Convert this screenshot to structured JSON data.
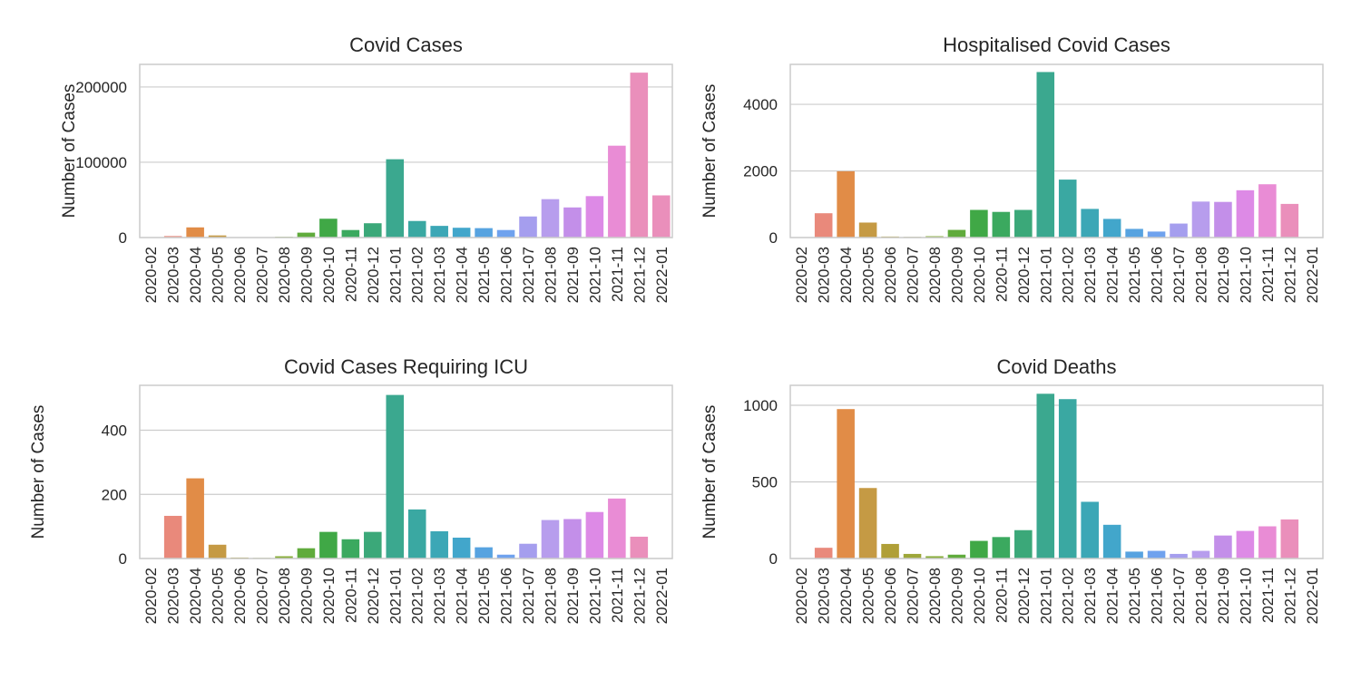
{
  "chart_data": [
    {
      "type": "bar",
      "title": "Covid Cases",
      "xlabel": "",
      "ylabel": "Number of Cases",
      "ylim": [
        0,
        230000
      ],
      "yticks": [
        0,
        100000,
        200000
      ],
      "grid": true,
      "categories": [
        "2020-02",
        "2020-03",
        "2020-04",
        "2020-05",
        "2020-06",
        "2020-07",
        "2020-08",
        "2020-09",
        "2020-10",
        "2020-11",
        "2020-12",
        "2021-01",
        "2021-02",
        "2021-03",
        "2021-04",
        "2021-05",
        "2021-06",
        "2021-07",
        "2021-08",
        "2021-09",
        "2021-10",
        "2021-11",
        "2021-12",
        "2022-01"
      ],
      "values": [
        30,
        2000,
        13500,
        2800,
        600,
        300,
        1000,
        6500,
        25000,
        10000,
        19000,
        104000,
        22000,
        15500,
        13000,
        12500,
        10000,
        28000,
        51000,
        40000,
        55000,
        122000,
        219000,
        56000
      ]
    },
    {
      "type": "bar",
      "title": "Hospitalised Covid Cases",
      "xlabel": "",
      "ylabel": "Number of Cases",
      "ylim": [
        0,
        5200
      ],
      "yticks": [
        0,
        2000,
        4000
      ],
      "grid": true,
      "categories": [
        "2020-02",
        "2020-03",
        "2020-04",
        "2020-05",
        "2020-06",
        "2020-07",
        "2020-08",
        "2020-09",
        "2020-10",
        "2020-11",
        "2020-12",
        "2021-01",
        "2021-02",
        "2021-03",
        "2021-04",
        "2021-05",
        "2021-06",
        "2021-07",
        "2021-08",
        "2021-09",
        "2021-10",
        "2021-11",
        "2021-12",
        "2022-01"
      ],
      "values": [
        0,
        730,
        1990,
        450,
        30,
        20,
        40,
        230,
        830,
        770,
        830,
        4970,
        1740,
        860,
        560,
        260,
        180,
        420,
        1080,
        1070,
        1420,
        1600,
        1010,
        0
      ]
    },
    {
      "type": "bar",
      "title": "Covid Cases Requiring ICU",
      "xlabel": "",
      "ylabel": "Number of Cases",
      "ylim": [
        0,
        540
      ],
      "yticks": [
        0,
        200,
        400
      ],
      "grid": true,
      "categories": [
        "2020-02",
        "2020-03",
        "2020-04",
        "2020-05",
        "2020-06",
        "2020-07",
        "2020-08",
        "2020-09",
        "2020-10",
        "2020-11",
        "2020-12",
        "2021-01",
        "2021-02",
        "2021-03",
        "2021-04",
        "2021-05",
        "2021-06",
        "2021-07",
        "2021-08",
        "2021-09",
        "2021-10",
        "2021-11",
        "2021-12",
        "2022-01"
      ],
      "values": [
        0,
        133,
        250,
        43,
        3,
        2,
        7,
        32,
        83,
        60,
        83,
        510,
        153,
        85,
        65,
        35,
        12,
        46,
        120,
        123,
        145,
        187,
        68,
        0
      ]
    },
    {
      "type": "bar",
      "title": "Covid Deaths",
      "xlabel": "",
      "ylabel": "Number of Cases",
      "ylim": [
        0,
        1130
      ],
      "yticks": [
        0,
        500,
        1000
      ],
      "grid": true,
      "categories": [
        "2020-02",
        "2020-03",
        "2020-04",
        "2020-05",
        "2020-06",
        "2020-07",
        "2020-08",
        "2020-09",
        "2020-10",
        "2020-11",
        "2020-12",
        "2021-01",
        "2021-02",
        "2021-03",
        "2021-04",
        "2021-05",
        "2021-06",
        "2021-07",
        "2021-08",
        "2021-09",
        "2021-10",
        "2021-11",
        "2021-12",
        "2022-01"
      ],
      "values": [
        0,
        70,
        975,
        460,
        95,
        30,
        15,
        25,
        115,
        140,
        185,
        1075,
        1040,
        370,
        220,
        45,
        50,
        30,
        50,
        150,
        180,
        210,
        255,
        0
      ]
    }
  ],
  "palette": [
    "#e9897b",
    "#e9897b",
    "#e18c47",
    "#c59a44",
    "#b09f37",
    "#9ea73a",
    "#86ac36",
    "#60ab3c",
    "#40a846",
    "#3ba95f",
    "#3ba879",
    "#3ba88f",
    "#3aa8a2",
    "#3ca7b6",
    "#42a6cb",
    "#57a3e0",
    "#6fa2ee",
    "#a59eee",
    "#b79ded",
    "#c38fe9",
    "#dd8ae6",
    "#e98cd5",
    "#ea8fbb",
    "#ea8fbb"
  ]
}
